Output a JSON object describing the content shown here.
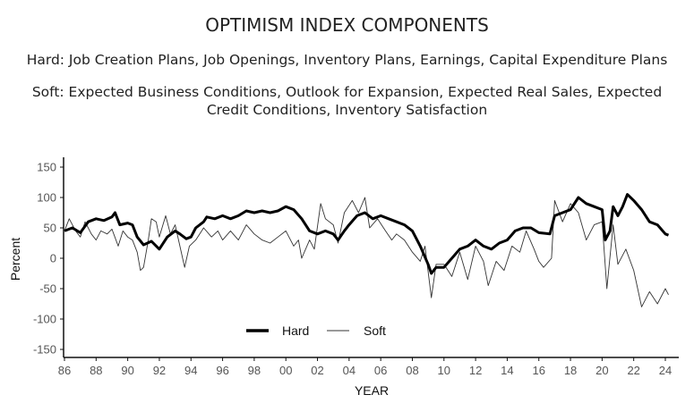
{
  "chart_data": {
    "type": "line",
    "title": "OPTIMISM INDEX COMPONENTS",
    "subtitles": [
      "Hard: Job Creation Plans, Job Openings, Inventory Plans, Earnings, Capital Expenditure Plans",
      "Soft: Expected Business Conditions, Outlook for Expansion, Expected Real Sales, Expected",
      "Credit Conditions, Inventory Satisfaction"
    ],
    "xlabel": "YEAR",
    "ylabel": "Percent",
    "xlim": [
      1986,
      2025
    ],
    "ylim": [
      -165,
      165
    ],
    "xticks": [
      1986,
      1988,
      1990,
      1992,
      1994,
      1996,
      1998,
      2000,
      2002,
      2004,
      2006,
      2008,
      2010,
      2012,
      2014,
      2016,
      2018,
      2020,
      2022,
      2024
    ],
    "xtick_labels": [
      "86",
      "88",
      "90",
      "92",
      "94",
      "96",
      "98",
      "00",
      "02",
      "04",
      "06",
      "08",
      "10",
      "12",
      "14",
      "16",
      "18",
      "20",
      "22",
      "24"
    ],
    "yticks": [
      150,
      100,
      50,
      0,
      -50,
      -100,
      -150
    ],
    "ytick_labels": [
      "150",
      "100",
      "50",
      "0",
      "-50",
      "-100",
      "-150"
    ],
    "grid": false,
    "legend": {
      "placement": "bottom-center",
      "entries": [
        "Hard",
        "Soft"
      ]
    },
    "series": [
      {
        "name": "Hard",
        "points": [
          [
            1986,
            45
          ],
          [
            1986.5,
            50
          ],
          [
            1987,
            42
          ],
          [
            1987.5,
            60
          ],
          [
            1988,
            65
          ],
          [
            1988.5,
            62
          ],
          [
            1989,
            68
          ],
          [
            1989.2,
            75
          ],
          [
            1989.5,
            55
          ],
          [
            1990,
            58
          ],
          [
            1990.3,
            55
          ],
          [
            1990.6,
            35
          ],
          [
            1991,
            22
          ],
          [
            1991.5,
            28
          ],
          [
            1992,
            15
          ],
          [
            1992.5,
            35
          ],
          [
            1993,
            45
          ],
          [
            1993.3,
            40
          ],
          [
            1993.7,
            32
          ],
          [
            1994,
            35
          ],
          [
            1994.3,
            50
          ],
          [
            1994.8,
            60
          ],
          [
            1995,
            68
          ],
          [
            1995.5,
            65
          ],
          [
            1996,
            70
          ],
          [
            1996.5,
            65
          ],
          [
            1997,
            70
          ],
          [
            1997.5,
            78
          ],
          [
            1998,
            75
          ],
          [
            1998.5,
            78
          ],
          [
            1999,
            75
          ],
          [
            1999.5,
            78
          ],
          [
            2000,
            85
          ],
          [
            2000.5,
            80
          ],
          [
            2001,
            65
          ],
          [
            2001.5,
            45
          ],
          [
            2002,
            40
          ],
          [
            2002.5,
            45
          ],
          [
            2003,
            40
          ],
          [
            2003.3,
            30
          ],
          [
            2003.7,
            45
          ],
          [
            2004,
            55
          ],
          [
            2004.5,
            70
          ],
          [
            2005,
            75
          ],
          [
            2005.5,
            65
          ],
          [
            2006,
            70
          ],
          [
            2006.5,
            65
          ],
          [
            2007,
            60
          ],
          [
            2007.5,
            55
          ],
          [
            2008,
            45
          ],
          [
            2008.5,
            20
          ],
          [
            2009,
            -10
          ],
          [
            2009.2,
            -25
          ],
          [
            2009.5,
            -15
          ],
          [
            2010,
            -15
          ],
          [
            2010.5,
            0
          ],
          [
            2011,
            15
          ],
          [
            2011.5,
            20
          ],
          [
            2012,
            30
          ],
          [
            2012.5,
            20
          ],
          [
            2013,
            15
          ],
          [
            2013.5,
            25
          ],
          [
            2014,
            30
          ],
          [
            2014.5,
            45
          ],
          [
            2015,
            50
          ],
          [
            2015.5,
            50
          ],
          [
            2016,
            42
          ],
          [
            2016.7,
            40
          ],
          [
            2017,
            70
          ],
          [
            2017.5,
            75
          ],
          [
            2018,
            80
          ],
          [
            2018.5,
            100
          ],
          [
            2019,
            90
          ],
          [
            2019.5,
            85
          ],
          [
            2020,
            80
          ],
          [
            2020.2,
            30
          ],
          [
            2020.5,
            45
          ],
          [
            2020.7,
            85
          ],
          [
            2021,
            70
          ],
          [
            2021.3,
            85
          ],
          [
            2021.6,
            105
          ],
          [
            2022,
            95
          ],
          [
            2022.5,
            80
          ],
          [
            2023,
            60
          ],
          [
            2023.5,
            55
          ],
          [
            2024,
            40
          ],
          [
            2024.2,
            38
          ]
        ]
      },
      {
        "name": "Soft",
        "points": [
          [
            1986,
            45
          ],
          [
            1986.3,
            65
          ],
          [
            1986.7,
            45
          ],
          [
            1987,
            35
          ],
          [
            1987.3,
            60
          ],
          [
            1987.7,
            40
          ],
          [
            1988,
            30
          ],
          [
            1988.3,
            45
          ],
          [
            1988.7,
            40
          ],
          [
            1989,
            48
          ],
          [
            1989.4,
            20
          ],
          [
            1989.7,
            45
          ],
          [
            1990,
            35
          ],
          [
            1990.3,
            30
          ],
          [
            1990.6,
            10
          ],
          [
            1990.8,
            -20
          ],
          [
            1991,
            -15
          ],
          [
            1991.3,
            30
          ],
          [
            1991.5,
            65
          ],
          [
            1991.8,
            60
          ],
          [
            1992,
            35
          ],
          [
            1992.4,
            70
          ],
          [
            1992.7,
            40
          ],
          [
            1993,
            55
          ],
          [
            1993.3,
            20
          ],
          [
            1993.6,
            -15
          ],
          [
            1993.9,
            20
          ],
          [
            1994.3,
            30
          ],
          [
            1994.8,
            50
          ],
          [
            1995.3,
            35
          ],
          [
            1995.7,
            45
          ],
          [
            1996,
            30
          ],
          [
            1996.5,
            45
          ],
          [
            1997,
            30
          ],
          [
            1997.5,
            55
          ],
          [
            1998,
            40
          ],
          [
            1998.5,
            30
          ],
          [
            1999,
            25
          ],
          [
            1999.5,
            35
          ],
          [
            2000,
            45
          ],
          [
            2000.5,
            20
          ],
          [
            2000.8,
            30
          ],
          [
            2001,
            0
          ],
          [
            2001.5,
            30
          ],
          [
            2001.8,
            15
          ],
          [
            2002.2,
            90
          ],
          [
            2002.5,
            65
          ],
          [
            2003,
            55
          ],
          [
            2003.3,
            25
          ],
          [
            2003.7,
            75
          ],
          [
            2004.2,
            95
          ],
          [
            2004.6,
            75
          ],
          [
            2005,
            100
          ],
          [
            2005.3,
            50
          ],
          [
            2005.8,
            65
          ],
          [
            2006.3,
            45
          ],
          [
            2006.7,
            30
          ],
          [
            2007,
            40
          ],
          [
            2007.5,
            30
          ],
          [
            2008,
            10
          ],
          [
            2008.5,
            -5
          ],
          [
            2008.8,
            20
          ],
          [
            2009.2,
            -65
          ],
          [
            2009.5,
            -10
          ],
          [
            2010,
            -10
          ],
          [
            2010.5,
            -30
          ],
          [
            2011,
            10
          ],
          [
            2011.5,
            -35
          ],
          [
            2012,
            20
          ],
          [
            2012.5,
            -5
          ],
          [
            2012.8,
            -45
          ],
          [
            2013.3,
            -5
          ],
          [
            2013.8,
            -20
          ],
          [
            2014.3,
            20
          ],
          [
            2014.8,
            10
          ],
          [
            2015.2,
            45
          ],
          [
            2015.7,
            15
          ],
          [
            2016,
            -5
          ],
          [
            2016.3,
            -15
          ],
          [
            2016.8,
            0
          ],
          [
            2017,
            95
          ],
          [
            2017.5,
            60
          ],
          [
            2018,
            90
          ],
          [
            2018.5,
            75
          ],
          [
            2019,
            30
          ],
          [
            2019.5,
            55
          ],
          [
            2020,
            60
          ],
          [
            2020.3,
            -50
          ],
          [
            2020.7,
            55
          ],
          [
            2021,
            -10
          ],
          [
            2021.5,
            15
          ],
          [
            2022,
            -20
          ],
          [
            2022.5,
            -80
          ],
          [
            2023,
            -55
          ],
          [
            2023.5,
            -75
          ],
          [
            2024,
            -50
          ],
          [
            2024.2,
            -60
          ]
        ]
      }
    ]
  }
}
